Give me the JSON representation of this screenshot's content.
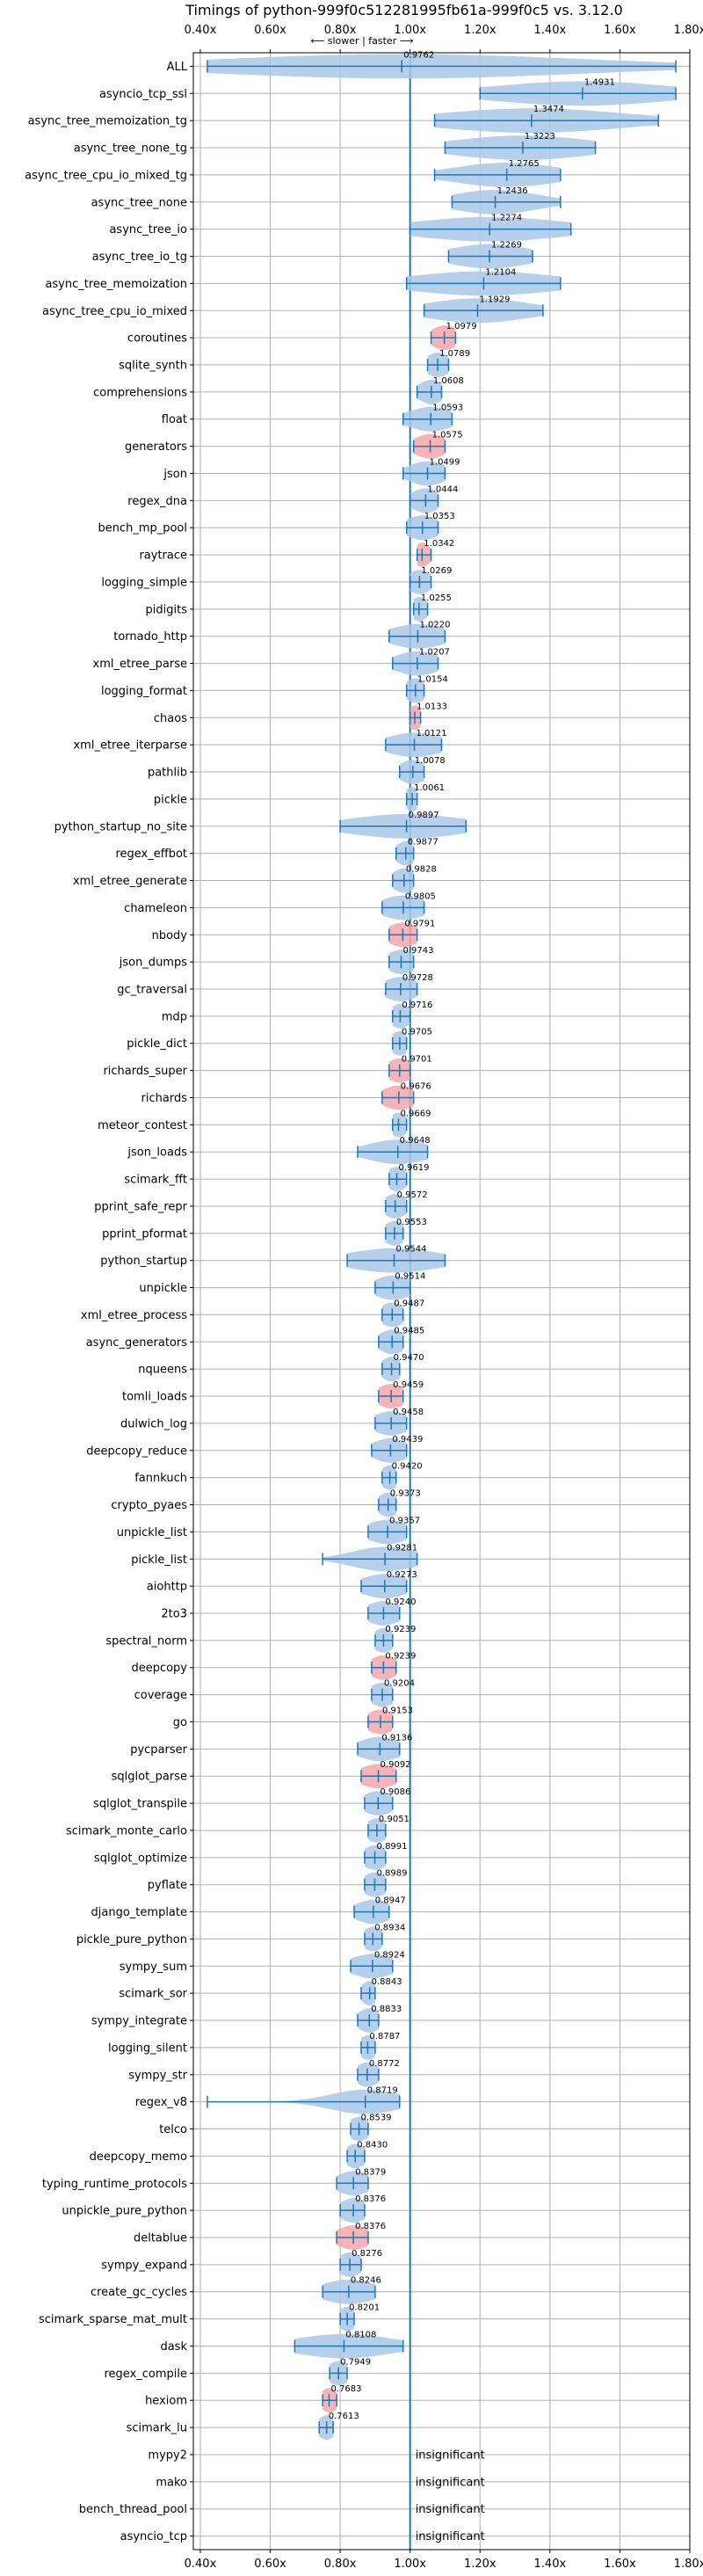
{
  "chart_data": {
    "type": "violin",
    "title": "Timings of python-999f0c512281995fb61a-999f0c5 vs. 3.12.0",
    "direction_label": "⟵ slower | faster ⟶",
    "xlim": [
      0.38,
      1.8
    ],
    "xticks": [
      "0.40x",
      "0.60x",
      "0.80x",
      "1.00x",
      "1.20x",
      "1.40x",
      "1.60x",
      "1.80x"
    ],
    "xtick_values": [
      0.4,
      0.6,
      0.8,
      1.0,
      1.2,
      1.4,
      1.6,
      1.8
    ],
    "reference_line": 1.0,
    "grid": true,
    "colors": {
      "violin": "#a9c8e8",
      "significant_violin": "#f4a6ab",
      "line": "#1f77b4",
      "grid": "#b0b0b0"
    },
    "benchmarks": [
      {
        "name": "ALL",
        "value": 0.9762,
        "label": "0.9762",
        "range": [
          0.42,
          1.76
        ],
        "hl": false
      },
      {
        "name": "asyncio_tcp_ssl",
        "value": 1.4931,
        "label": "1.4931",
        "range": [
          1.2,
          1.76
        ],
        "hl": false
      },
      {
        "name": "async_tree_memoization_tg",
        "value": 1.3474,
        "label": "1.3474",
        "range": [
          1.07,
          1.71
        ],
        "hl": false
      },
      {
        "name": "async_tree_none_tg",
        "value": 1.3223,
        "label": "1.3223",
        "range": [
          1.1,
          1.53
        ],
        "hl": false
      },
      {
        "name": "async_tree_cpu_io_mixed_tg",
        "value": 1.2765,
        "label": "1.2765",
        "range": [
          1.07,
          1.43
        ],
        "hl": false
      },
      {
        "name": "async_tree_none",
        "value": 1.2436,
        "label": "1.2436",
        "range": [
          1.12,
          1.43
        ],
        "hl": false
      },
      {
        "name": "async_tree_io",
        "value": 1.2274,
        "label": "1.2274",
        "range": [
          1.0,
          1.46
        ],
        "hl": false
      },
      {
        "name": "async_tree_io_tg",
        "value": 1.2269,
        "label": "1.2269",
        "range": [
          1.11,
          1.35
        ],
        "hl": false
      },
      {
        "name": "async_tree_memoization",
        "value": 1.2104,
        "label": "1.2104",
        "range": [
          0.99,
          1.43
        ],
        "hl": false
      },
      {
        "name": "async_tree_cpu_io_mixed",
        "value": 1.1929,
        "label": "1.1929",
        "range": [
          1.04,
          1.38
        ],
        "hl": false
      },
      {
        "name": "coroutines",
        "value": 1.0979,
        "label": "1.0979",
        "range": [
          1.06,
          1.13
        ],
        "hl": true
      },
      {
        "name": "sqlite_synth",
        "value": 1.0789,
        "label": "1.0789",
        "range": [
          1.05,
          1.11
        ],
        "hl": false
      },
      {
        "name": "comprehensions",
        "value": 1.0608,
        "label": "1.0608",
        "range": [
          1.02,
          1.09
        ],
        "hl": false
      },
      {
        "name": "float",
        "value": 1.0593,
        "label": "1.0593",
        "range": [
          0.98,
          1.12
        ],
        "hl": false
      },
      {
        "name": "generators",
        "value": 1.0575,
        "label": "1.0575",
        "range": [
          1.01,
          1.1
        ],
        "hl": true
      },
      {
        "name": "json",
        "value": 1.0499,
        "label": "1.0499",
        "range": [
          0.98,
          1.1
        ],
        "hl": false
      },
      {
        "name": "regex_dna",
        "value": 1.0444,
        "label": "1.0444",
        "range": [
          1.0,
          1.08
        ],
        "hl": false
      },
      {
        "name": "bench_mp_pool",
        "value": 1.0353,
        "label": "1.0353",
        "range": [
          0.99,
          1.08
        ],
        "hl": false
      },
      {
        "name": "raytrace",
        "value": 1.0342,
        "label": "1.0342",
        "range": [
          1.02,
          1.06
        ],
        "hl": true
      },
      {
        "name": "logging_simple",
        "value": 1.0269,
        "label": "1.0269",
        "range": [
          1.0,
          1.06
        ],
        "hl": false
      },
      {
        "name": "pidigits",
        "value": 1.0255,
        "label": "1.0255",
        "range": [
          1.01,
          1.05
        ],
        "hl": false
      },
      {
        "name": "tornado_http",
        "value": 1.022,
        "label": "1.0220",
        "range": [
          0.94,
          1.1
        ],
        "hl": false
      },
      {
        "name": "xml_etree_parse",
        "value": 1.0207,
        "label": "1.0207",
        "range": [
          0.95,
          1.08
        ],
        "hl": false
      },
      {
        "name": "logging_format",
        "value": 1.0154,
        "label": "1.0154",
        "range": [
          0.99,
          1.04
        ],
        "hl": false
      },
      {
        "name": "chaos",
        "value": 1.0133,
        "label": "1.0133",
        "range": [
          1.0,
          1.03
        ],
        "hl": true
      },
      {
        "name": "xml_etree_iterparse",
        "value": 1.0121,
        "label": "1.0121",
        "range": [
          0.93,
          1.09
        ],
        "hl": false
      },
      {
        "name": "pathlib",
        "value": 1.0078,
        "label": "1.0078",
        "range": [
          0.97,
          1.04
        ],
        "hl": false
      },
      {
        "name": "pickle",
        "value": 1.0061,
        "label": "1.0061",
        "range": [
          0.99,
          1.02
        ],
        "hl": false
      },
      {
        "name": "python_startup_no_site",
        "value": 0.9897,
        "label": "0.9897",
        "range": [
          0.8,
          1.16
        ],
        "hl": false
      },
      {
        "name": "regex_effbot",
        "value": 0.9877,
        "label": "0.9877",
        "range": [
          0.96,
          1.01
        ],
        "hl": false
      },
      {
        "name": "xml_etree_generate",
        "value": 0.9828,
        "label": "0.9828",
        "range": [
          0.95,
          1.01
        ],
        "hl": false
      },
      {
        "name": "chameleon",
        "value": 0.9805,
        "label": "0.9805",
        "range": [
          0.92,
          1.04
        ],
        "hl": false
      },
      {
        "name": "nbody",
        "value": 0.9791,
        "label": "0.9791",
        "range": [
          0.94,
          1.02
        ],
        "hl": true
      },
      {
        "name": "json_dumps",
        "value": 0.9743,
        "label": "0.9743",
        "range": [
          0.94,
          1.01
        ],
        "hl": false
      },
      {
        "name": "gc_traversal",
        "value": 0.9728,
        "label": "0.9728",
        "range": [
          0.93,
          1.02
        ],
        "hl": false
      },
      {
        "name": "mdp",
        "value": 0.9716,
        "label": "0.9716",
        "range": [
          0.95,
          1.0
        ],
        "hl": false
      },
      {
        "name": "pickle_dict",
        "value": 0.9705,
        "label": "0.9705",
        "range": [
          0.95,
          0.99
        ],
        "hl": false
      },
      {
        "name": "richards_super",
        "value": 0.9701,
        "label": "0.9701",
        "range": [
          0.94,
          1.0
        ],
        "hl": true
      },
      {
        "name": "richards",
        "value": 0.9676,
        "label": "0.9676",
        "range": [
          0.92,
          1.01
        ],
        "hl": true
      },
      {
        "name": "meteor_contest",
        "value": 0.9669,
        "label": "0.9669",
        "range": [
          0.95,
          0.99
        ],
        "hl": false
      },
      {
        "name": "json_loads",
        "value": 0.9648,
        "label": "0.9648",
        "range": [
          0.85,
          1.05
        ],
        "hl": false
      },
      {
        "name": "scimark_fft",
        "value": 0.9619,
        "label": "0.9619",
        "range": [
          0.94,
          0.99
        ],
        "hl": false
      },
      {
        "name": "pprint_safe_repr",
        "value": 0.9572,
        "label": "0.9572",
        "range": [
          0.93,
          0.99
        ],
        "hl": false
      },
      {
        "name": "pprint_pformat",
        "value": 0.9553,
        "label": "0.9553",
        "range": [
          0.93,
          0.98
        ],
        "hl": false
      },
      {
        "name": "python_startup",
        "value": 0.9544,
        "label": "0.9544",
        "range": [
          0.82,
          1.1
        ],
        "hl": false
      },
      {
        "name": "unpickle",
        "value": 0.9514,
        "label": "0.9514",
        "range": [
          0.9,
          1.0
        ],
        "hl": false
      },
      {
        "name": "xml_etree_process",
        "value": 0.9487,
        "label": "0.9487",
        "range": [
          0.92,
          0.98
        ],
        "hl": false
      },
      {
        "name": "async_generators",
        "value": 0.9485,
        "label": "0.9485",
        "range": [
          0.91,
          0.98
        ],
        "hl": false
      },
      {
        "name": "nqueens",
        "value": 0.947,
        "label": "0.9470",
        "range": [
          0.92,
          0.97
        ],
        "hl": false
      },
      {
        "name": "tomli_loads",
        "value": 0.9459,
        "label": "0.9459",
        "range": [
          0.91,
          0.98
        ],
        "hl": true
      },
      {
        "name": "dulwich_log",
        "value": 0.9458,
        "label": "0.9458",
        "range": [
          0.9,
          0.99
        ],
        "hl": false
      },
      {
        "name": "deepcopy_reduce",
        "value": 0.9439,
        "label": "0.9439",
        "range": [
          0.89,
          0.99
        ],
        "hl": false
      },
      {
        "name": "fannkuch",
        "value": 0.942,
        "label": "0.9420",
        "range": [
          0.92,
          0.96
        ],
        "hl": false
      },
      {
        "name": "crypto_pyaes",
        "value": 0.9373,
        "label": "0.9373",
        "range": [
          0.91,
          0.96
        ],
        "hl": false
      },
      {
        "name": "unpickle_list",
        "value": 0.9357,
        "label": "0.9357",
        "range": [
          0.88,
          0.99
        ],
        "hl": false
      },
      {
        "name": "pickle_list",
        "value": 0.9281,
        "label": "0.9281",
        "range": [
          0.75,
          1.02
        ],
        "hl": false
      },
      {
        "name": "aiohttp",
        "value": 0.9273,
        "label": "0.9273",
        "range": [
          0.86,
          0.99
        ],
        "hl": false
      },
      {
        "name": "2to3",
        "value": 0.924,
        "label": "0.9240",
        "range": [
          0.88,
          0.97
        ],
        "hl": false
      },
      {
        "name": "spectral_norm",
        "value": 0.9239,
        "label": "0.9239",
        "range": [
          0.9,
          0.95
        ],
        "hl": false
      },
      {
        "name": "deepcopy",
        "value": 0.9239,
        "label": "0.9239",
        "range": [
          0.89,
          0.96
        ],
        "hl": true
      },
      {
        "name": "coverage",
        "value": 0.9204,
        "label": "0.9204",
        "range": [
          0.89,
          0.95
        ],
        "hl": false
      },
      {
        "name": "go",
        "value": 0.9153,
        "label": "0.9153",
        "range": [
          0.88,
          0.95
        ],
        "hl": true
      },
      {
        "name": "pycparser",
        "value": 0.9136,
        "label": "0.9136",
        "range": [
          0.85,
          0.97
        ],
        "hl": false
      },
      {
        "name": "sqlglot_parse",
        "value": 0.9092,
        "label": "0.9092",
        "range": [
          0.86,
          0.96
        ],
        "hl": true
      },
      {
        "name": "sqlglot_transpile",
        "value": 0.9086,
        "label": "0.9086",
        "range": [
          0.87,
          0.95
        ],
        "hl": false
      },
      {
        "name": "scimark_monte_carlo",
        "value": 0.9051,
        "label": "0.9051",
        "range": [
          0.88,
          0.93
        ],
        "hl": false
      },
      {
        "name": "sqlglot_optimize",
        "value": 0.8991,
        "label": "0.8991",
        "range": [
          0.87,
          0.93
        ],
        "hl": false
      },
      {
        "name": "pyflate",
        "value": 0.8989,
        "label": "0.8989",
        "range": [
          0.87,
          0.93
        ],
        "hl": false
      },
      {
        "name": "django_template",
        "value": 0.8947,
        "label": "0.8947",
        "range": [
          0.84,
          0.94
        ],
        "hl": false
      },
      {
        "name": "pickle_pure_python",
        "value": 0.8934,
        "label": "0.8934",
        "range": [
          0.87,
          0.92
        ],
        "hl": false
      },
      {
        "name": "sympy_sum",
        "value": 0.8924,
        "label": "0.8924",
        "range": [
          0.83,
          0.95
        ],
        "hl": false
      },
      {
        "name": "scimark_sor",
        "value": 0.8843,
        "label": "0.8843",
        "range": [
          0.86,
          0.9
        ],
        "hl": false
      },
      {
        "name": "sympy_integrate",
        "value": 0.8833,
        "label": "0.8833",
        "range": [
          0.85,
          0.91
        ],
        "hl": false
      },
      {
        "name": "logging_silent",
        "value": 0.8787,
        "label": "0.8787",
        "range": [
          0.86,
          0.9
        ],
        "hl": false
      },
      {
        "name": "sympy_str",
        "value": 0.8772,
        "label": "0.8772",
        "range": [
          0.85,
          0.91
        ],
        "hl": false
      },
      {
        "name": "regex_v8",
        "value": 0.8719,
        "label": "0.8719",
        "range": [
          0.42,
          0.97
        ],
        "hl": false
      },
      {
        "name": "telco",
        "value": 0.8539,
        "label": "0.8539",
        "range": [
          0.83,
          0.88
        ],
        "hl": false
      },
      {
        "name": "deepcopy_memo",
        "value": 0.843,
        "label": "0.8430",
        "range": [
          0.82,
          0.87
        ],
        "hl": false
      },
      {
        "name": "typing_runtime_protocols",
        "value": 0.8379,
        "label": "0.8379",
        "range": [
          0.79,
          0.88
        ],
        "hl": false
      },
      {
        "name": "unpickle_pure_python",
        "value": 0.8376,
        "label": "0.8376",
        "range": [
          0.8,
          0.87
        ],
        "hl": false
      },
      {
        "name": "deltablue",
        "value": 0.8376,
        "label": "0.8376",
        "range": [
          0.79,
          0.88
        ],
        "hl": true
      },
      {
        "name": "sympy_expand",
        "value": 0.8276,
        "label": "0.8276",
        "range": [
          0.8,
          0.86
        ],
        "hl": false
      },
      {
        "name": "create_gc_cycles",
        "value": 0.8246,
        "label": "0.8246",
        "range": [
          0.75,
          0.9
        ],
        "hl": false
      },
      {
        "name": "scimark_sparse_mat_mult",
        "value": 0.8201,
        "label": "0.8201",
        "range": [
          0.8,
          0.84
        ],
        "hl": false
      },
      {
        "name": "dask",
        "value": 0.8108,
        "label": "0.8108",
        "range": [
          0.67,
          0.98
        ],
        "hl": false
      },
      {
        "name": "regex_compile",
        "value": 0.7949,
        "label": "0.7949",
        "range": [
          0.77,
          0.82
        ],
        "hl": false
      },
      {
        "name": "hexiom",
        "value": 0.7683,
        "label": "0.7683",
        "range": [
          0.75,
          0.79
        ],
        "hl": true
      },
      {
        "name": "scimark_lu",
        "value": 0.7613,
        "label": "0.7613",
        "range": [
          0.74,
          0.78
        ],
        "hl": false
      },
      {
        "name": "mypy2",
        "value": null,
        "label": "insignificant",
        "range": null,
        "hl": false
      },
      {
        "name": "mako",
        "value": null,
        "label": "insignificant",
        "range": null,
        "hl": false
      },
      {
        "name": "bench_thread_pool",
        "value": null,
        "label": "insignificant",
        "range": null,
        "hl": false
      },
      {
        "name": "asyncio_tcp",
        "value": null,
        "label": "insignificant",
        "range": null,
        "hl": false
      }
    ]
  }
}
